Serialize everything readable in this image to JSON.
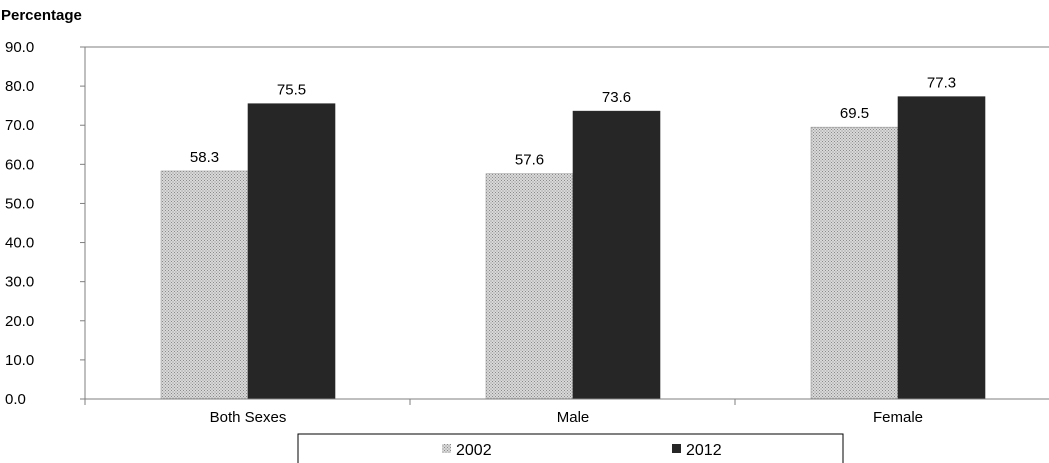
{
  "chart_data": {
    "type": "bar",
    "ylabel": "Percentage",
    "xlabel": "",
    "title": "",
    "categories": [
      "Both Sexes",
      "Male",
      "Female"
    ],
    "series": [
      {
        "name": "2002",
        "values": [
          58.3,
          57.6,
          69.5
        ],
        "color": "#c8c8c8",
        "pattern": "dotted"
      },
      {
        "name": "2012",
        "values": [
          75.5,
          73.6,
          77.3
        ],
        "color": "#262626"
      }
    ],
    "ylim": [
      0,
      90
    ],
    "yticks": [
      "0.0",
      "10.0",
      "20.0",
      "30.0",
      "40.0",
      "50.0",
      "60.0",
      "70.0",
      "80.0",
      "90.0"
    ],
    "data_labels": [
      [
        "58.3",
        "57.6",
        "69.5"
      ],
      [
        "75.5",
        "73.6",
        "77.3"
      ]
    ],
    "grid": false,
    "legend_position": "bottom"
  }
}
